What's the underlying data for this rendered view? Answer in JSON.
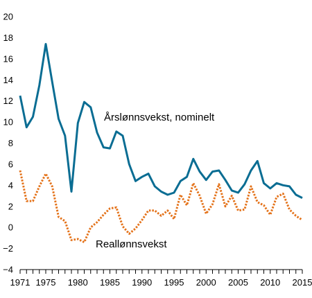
{
  "chart_data": {
    "type": "line",
    "title": "",
    "xlabel": "",
    "ylabel": "",
    "xlim": [
      1971,
      2015
    ],
    "ylim": [
      -4,
      20
    ],
    "y_ticks": [
      -4,
      -2,
      0,
      2,
      4,
      6,
      8,
      10,
      12,
      14,
      16,
      18,
      20
    ],
    "x_ticks": [
      1971,
      1975,
      1980,
      1985,
      1990,
      1995,
      2000,
      2005,
      2010,
      2015
    ],
    "grid": false,
    "x": [
      1971,
      1972,
      1973,
      1974,
      1975,
      1976,
      1977,
      1978,
      1979,
      1980,
      1981,
      1982,
      1983,
      1984,
      1985,
      1986,
      1987,
      1988,
      1989,
      1990,
      1991,
      1992,
      1993,
      1994,
      1995,
      1996,
      1997,
      1998,
      1999,
      2000,
      2001,
      2002,
      2003,
      2004,
      2005,
      2006,
      2007,
      2008,
      2009,
      2010,
      2011,
      2012,
      2013,
      2014,
      2015
    ],
    "series": [
      {
        "name": "Årslønnsvekst, nominelt",
        "color": "#0a6d93",
        "dash": "solid",
        "values": [
          12.5,
          9.5,
          10.5,
          13.5,
          17.4,
          13.8,
          10.3,
          8.7,
          3.4,
          9.9,
          11.9,
          11.4,
          9.0,
          7.6,
          7.5,
          9.1,
          8.7,
          6.0,
          4.4,
          4.8,
          5.1,
          3.9,
          3.4,
          3.1,
          3.3,
          4.4,
          4.8,
          6.5,
          5.3,
          4.5,
          5.3,
          5.4,
          4.5,
          3.5,
          3.3,
          4.1,
          5.4,
          6.3,
          4.2,
          3.7,
          4.2,
          4.0,
          3.9,
          3.1,
          2.8
        ]
      },
      {
        "name": "Reallønnsvekst",
        "color": "#e4731b",
        "dash": "dotted",
        "values": [
          5.4,
          2.5,
          2.5,
          3.9,
          5.1,
          3.9,
          1.0,
          0.6,
          -1.2,
          -1.1,
          -1.4,
          0.0,
          0.5,
          1.2,
          1.8,
          1.9,
          0.1,
          -0.6,
          -0.1,
          0.7,
          1.6,
          1.6,
          1.1,
          1.6,
          0.8,
          3.1,
          2.1,
          4.2,
          3.0,
          1.3,
          2.2,
          4.1,
          2.0,
          3.0,
          1.6,
          1.7,
          3.9,
          2.4,
          2.1,
          1.2,
          2.9,
          3.2,
          1.7,
          1.1,
          0.7
        ]
      }
    ],
    "annotations": [
      {
        "text": "Årslønnsvekst, nominelt",
        "series": 0
      },
      {
        "text": "Reallønnsvekst",
        "series": 1
      }
    ]
  }
}
